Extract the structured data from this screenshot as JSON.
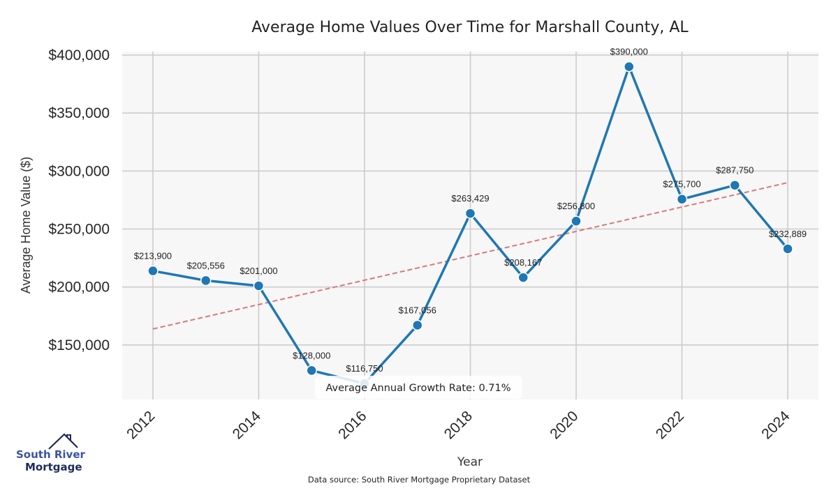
{
  "chart_data": {
    "type": "line",
    "title": "Average Home Values Over Time for Marshall County, AL",
    "xlabel": "Year",
    "ylabel": "Average Home Value ($)",
    "x": [
      2012,
      2013,
      2014,
      2015,
      2016,
      2017,
      2018,
      2019,
      2020,
      2021,
      2022,
      2023,
      2024
    ],
    "series": [
      {
        "name": "Average Home Value",
        "color": "#1f77b4",
        "values": [
          213900,
          205556,
          201000,
          128000,
          116750,
          167056,
          263429,
          208167,
          256800,
          390000,
          275700,
          287750,
          232889
        ],
        "labels": [
          "$213,900",
          "$205,556",
          "$201,000",
          "$128,000",
          "$116,750",
          "$167,056",
          "$263,429",
          "$208,167",
          "$256,800",
          "$390,000",
          "$275,700",
          "$287,750",
          "$232,889"
        ]
      },
      {
        "name": "Trend",
        "color": "#d9787a",
        "style": "dashed",
        "x": [
          2012,
          2024
        ],
        "values": [
          163800,
          290000
        ]
      }
    ],
    "xticks": [
      2012,
      2014,
      2016,
      2018,
      2020,
      2022,
      2024
    ],
    "xtick_labels": [
      "2012",
      "2014",
      "2016",
      "2018",
      "2020",
      "2022",
      "2024"
    ],
    "yticks": [
      150000,
      200000,
      250000,
      300000,
      350000,
      400000
    ],
    "ytick_labels": [
      "$150,000",
      "$200,000",
      "$250,000",
      "$300,000",
      "$350,000",
      "$400,000"
    ],
    "xlim": [
      2011.42,
      2024.58
    ],
    "ylim": [
      103000,
      403000
    ],
    "grid": true,
    "annotation": "Average Annual Growth Rate: 0.71%",
    "annotation_placement": "bottom-center"
  },
  "footer": {
    "source": "Data source: South River Mortgage Proprietary Dataset"
  },
  "logo": {
    "line1": "South River",
    "line2": "Mortgage"
  },
  "colors": {
    "plot_bg": "#f7f7f7",
    "grid": "#cccccc",
    "line": "#1f77b4",
    "trend": "#d9787a",
    "logo_blue": "#3c53a4",
    "logo_navy": "#1f2a5c"
  }
}
